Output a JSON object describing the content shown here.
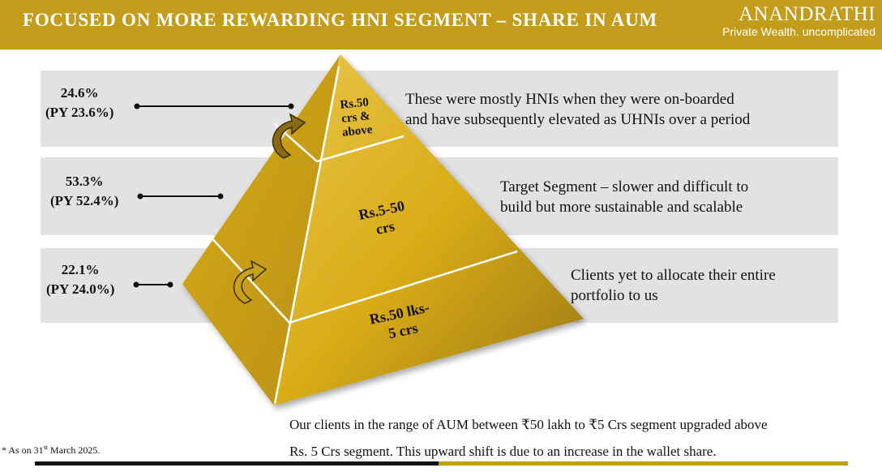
{
  "header": {
    "title": "FOCUSED ON MORE REWARDING HNI SEGMENT – SHARE IN AUM",
    "brand_name": "ANANDRATHI",
    "brand_tagline": "Private Wealth. uncomplicated"
  },
  "tiers": [
    {
      "share": "24.6%",
      "previous": "(PY 23.6%)",
      "label_lines": [
        "Rs.50",
        "crs  &",
        "above"
      ],
      "description": [
        "These were mostly HNIs when they were on-boarded",
        "and have subsequently elevated as UHNIs over a period"
      ]
    },
    {
      "share": "53.3%",
      "previous": "(PY 52.4%)",
      "label_lines": [
        "Rs.5-50",
        "crs"
      ],
      "description": [
        "Target Segment – slower and difficult to",
        "build but more sustainable and scalable"
      ]
    },
    {
      "share": "22.1%",
      "previous": "(PY 24.0%)",
      "label_lines": [
        "Rs.50 lks-",
        "5 crs"
      ],
      "description": [
        "Clients yet to allocate their entire",
        "portfolio to us"
      ]
    }
  ],
  "note": {
    "line1": "Our clients in the range of AUM between ₹50 lakh to ₹5 Crs segment upgraded  above",
    "line2": "Rs. 5 Crs segment. This upward shift is due to an increase in the wallet share."
  },
  "footnote": {
    "prefix": "* As on 31",
    "superscript": "st",
    "suffix": " March 2025."
  },
  "colors": {
    "gold": "#c49c1c",
    "band_grey": "#e2e2e2",
    "pyramid_light": "#e2b826",
    "pyramid_dark": "#a37f12"
  },
  "icons": [
    "upward-curved-arrow-icon",
    "upward-curved-arrow-icon"
  ]
}
